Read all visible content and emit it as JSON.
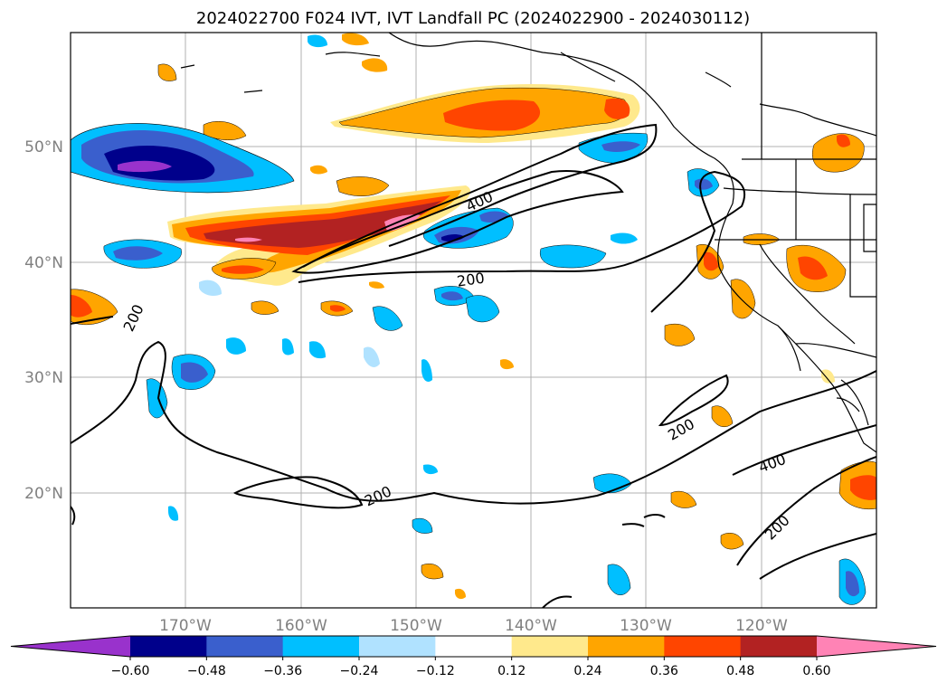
{
  "chart_data": {
    "type": "heatmap",
    "title": "2024022700 F024 IVT, IVT Landfall PC (2024022900 - 2024030112)",
    "projection": "lat-lon map, North Pacific",
    "lon_ticks": [
      "170°W",
      "160°W",
      "150°W",
      "140°W",
      "130°W",
      "120°W"
    ],
    "lat_ticks": [
      "50°N",
      "40°N",
      "30°N",
      "20°N"
    ],
    "lon_range": [
      -180,
      -110
    ],
    "lat_range": [
      10,
      60
    ],
    "grid": true,
    "colorbar": {
      "orientation": "horizontal",
      "extend": "both",
      "tick_labels": [
        "−0.60",
        "−0.48",
        "−0.36",
        "−0.24",
        "−0.12",
        "0.12",
        "0.24",
        "0.36",
        "0.48",
        "0.60"
      ],
      "levels": [
        -0.6,
        -0.48,
        -0.36,
        -0.24,
        -0.12,
        0.12,
        0.24,
        0.36,
        0.48,
        0.6
      ],
      "colors": [
        "#9932cc",
        "#00008b",
        "#3a5fcd",
        "#00bfff",
        "#b0e2ff",
        "#ffffff",
        "#ffe98c",
        "#ffa500",
        "#ff4500",
        "#b22222",
        "#ff83b5"
      ]
    },
    "contour_lines": {
      "field": "IVT",
      "levels": [
        200,
        400
      ],
      "labels": [
        "200",
        "400",
        "200",
        "200",
        "200",
        "400",
        "200"
      ]
    }
  }
}
